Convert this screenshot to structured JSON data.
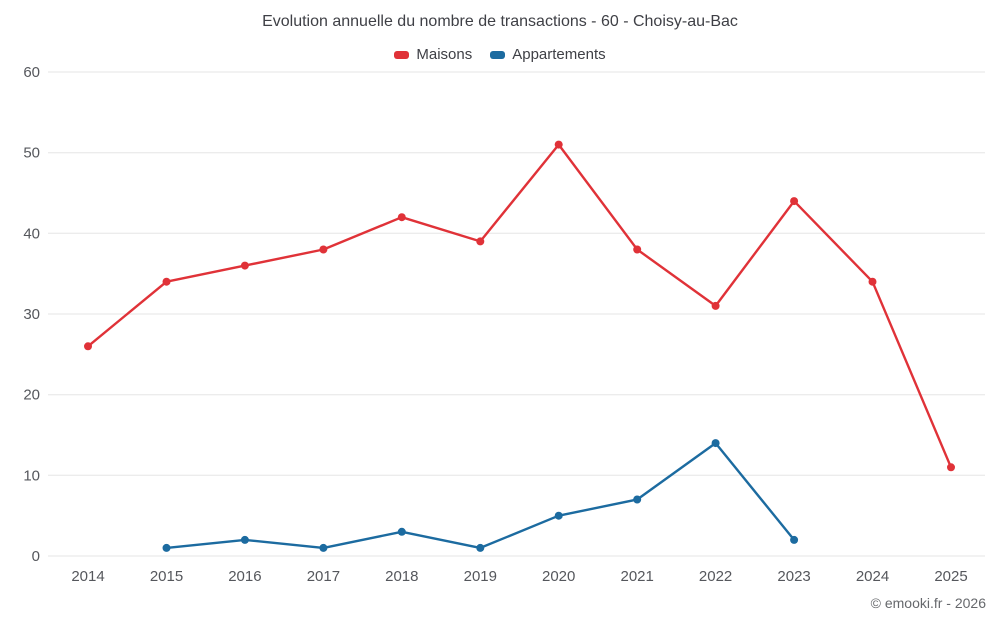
{
  "chart_data": {
    "type": "line",
    "title": "Evolution annuelle du nombre de transactions - 60 - Choisy-au-Bac",
    "categories": [
      "2014",
      "2015",
      "2016",
      "2017",
      "2018",
      "2019",
      "2020",
      "2021",
      "2022",
      "2023",
      "2024",
      "2025"
    ],
    "series": [
      {
        "name": "Maisons",
        "color": "#e03238",
        "values": [
          26,
          34,
          36,
          38,
          42,
          39,
          51,
          38,
          31,
          44,
          34,
          11
        ]
      },
      {
        "name": "Appartements",
        "color": "#1c6ba0",
        "values": [
          null,
          1,
          2,
          1,
          3,
          1,
          5,
          7,
          14,
          2,
          null,
          null
        ]
      }
    ],
    "xlabel": "",
    "ylabel": "",
    "ylim": [
      0,
      60
    ],
    "ytick": 10,
    "grid": true,
    "legend_position": "top",
    "gridline_color": "#e6e6e6",
    "tick_color": "#55575c"
  },
  "footer": {
    "copyright": "© emooki.fr - 2026"
  }
}
